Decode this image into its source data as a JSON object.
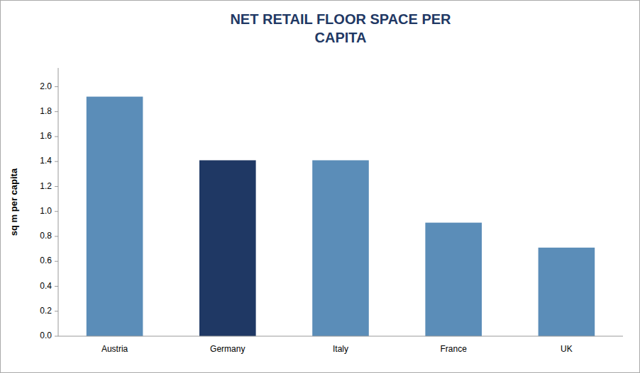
{
  "chart_data": {
    "type": "bar",
    "title": "NET RETAIL FLOOR SPACE PER\nCAPITA",
    "ylabel": "sq m per capita",
    "categories": [
      "Austria",
      "Germany",
      "Italy",
      "France",
      "UK"
    ],
    "values": [
      1.92,
      1.41,
      1.41,
      0.91,
      0.71
    ],
    "colors": [
      "#5b8db8",
      "#1f3864",
      "#5b8db8",
      "#5b8db8",
      "#5b8db8"
    ],
    "ylim": [
      0,
      2.15
    ],
    "yticks": [
      {
        "value": 0,
        "label": "0.0"
      },
      0.2,
      0.4,
      0.6,
      0.8,
      {
        "value": 1.0,
        "label": "1.0"
      },
      1.2,
      1.4,
      1.6,
      1.8,
      {
        "value": 2.0,
        "label": "2.0"
      }
    ],
    "grid": false
  }
}
